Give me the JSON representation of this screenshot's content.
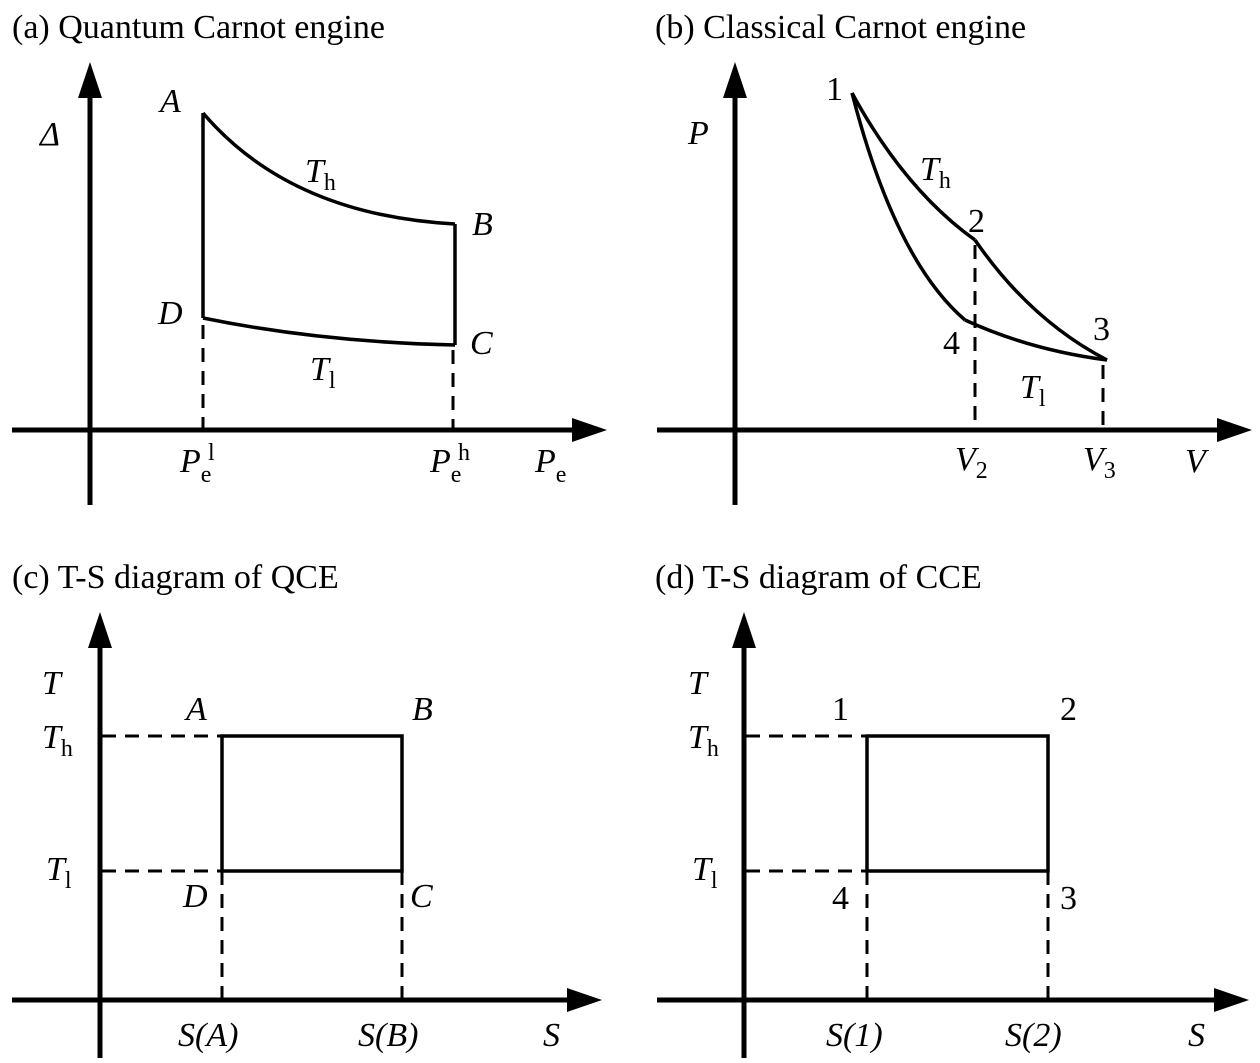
{
  "panels": [
    {
      "title": "(a) Quantum Carnot engine",
      "y_label": "Δ",
      "x_label": {
        "base": "P",
        "sub": "e"
      },
      "points": [
        "A",
        "B",
        "C",
        "D"
      ],
      "curve_labels": [
        {
          "base": "T",
          "sub": "h"
        },
        {
          "base": "T",
          "sub": "l"
        }
      ],
      "x_ticks": [
        {
          "base": "P",
          "sub": "e",
          "sup": "l"
        },
        {
          "base": "P",
          "sub": "e",
          "sup": "h"
        }
      ]
    },
    {
      "title": "(b) Classical Carnot engine",
      "y_label": "P",
      "x_label": "V",
      "points": [
        "1",
        "2",
        "3",
        "4"
      ],
      "curve_labels": [
        {
          "base": "T",
          "sub": "h"
        },
        {
          "base": "T",
          "sub": "l"
        }
      ],
      "x_ticks": [
        {
          "base": "V",
          "sub": "2"
        },
        {
          "base": "V",
          "sub": "3"
        }
      ]
    },
    {
      "title": "(c)   T-S diagram of QCE",
      "y_label": "T",
      "x_label": "S",
      "points": [
        "A",
        "B",
        "C",
        "D"
      ],
      "y_ticks": [
        {
          "base": "T",
          "sub": "h"
        },
        {
          "base": "T",
          "sub": "l"
        }
      ],
      "x_ticks": [
        "S(A)",
        "S(B)"
      ]
    },
    {
      "title": "(d)   T-S diagram of CCE",
      "y_label": "T",
      "x_label": "S",
      "points": [
        "1",
        "2",
        "3",
        "4"
      ],
      "y_ticks": [
        {
          "base": "T",
          "sub": "h"
        },
        {
          "base": "T",
          "sub": "l"
        }
      ],
      "x_ticks": [
        "S(1)",
        "S(2)"
      ]
    }
  ]
}
